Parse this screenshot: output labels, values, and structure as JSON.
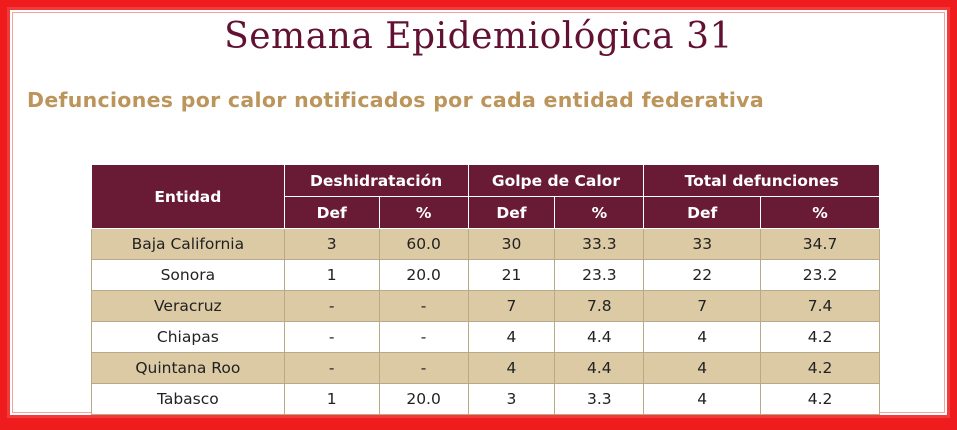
{
  "title": "Semana Epidemiológica 31",
  "subtitle": "Defunciones por calor notificados por cada entidad federativa",
  "table": {
    "headers": {
      "entidad": "Entidad",
      "group1": "Deshidratación",
      "group2": "Golpe de Calor",
      "group3": "Total defunciones",
      "sub": [
        "Def",
        "%",
        "Def",
        "%",
        "Def",
        "%"
      ]
    },
    "rows": [
      [
        "Baja California",
        "3",
        "60.0",
        "30",
        "33.3",
        "33",
        "34.7"
      ],
      [
        "Sonora",
        "1",
        "20.0",
        "21",
        "23.3",
        "22",
        "23.2"
      ],
      [
        "Veracruz",
        "-",
        "-",
        "7",
        "7.8",
        "7",
        "7.4"
      ],
      [
        "Chiapas",
        "-",
        "-",
        "4",
        "4.4",
        "4",
        "4.2"
      ],
      [
        "Quintana Roo",
        "-",
        "-",
        "4",
        "4.4",
        "4",
        "4.2"
      ],
      [
        "Tabasco",
        "1",
        "20.0",
        "3",
        "3.3",
        "4",
        "4.2"
      ]
    ]
  },
  "colors": {
    "frame": "#ee1c1c",
    "title": "#621132",
    "subtitle": "#bc955c",
    "header_bg": "#691b36",
    "row_tan": "#dccaa5"
  }
}
